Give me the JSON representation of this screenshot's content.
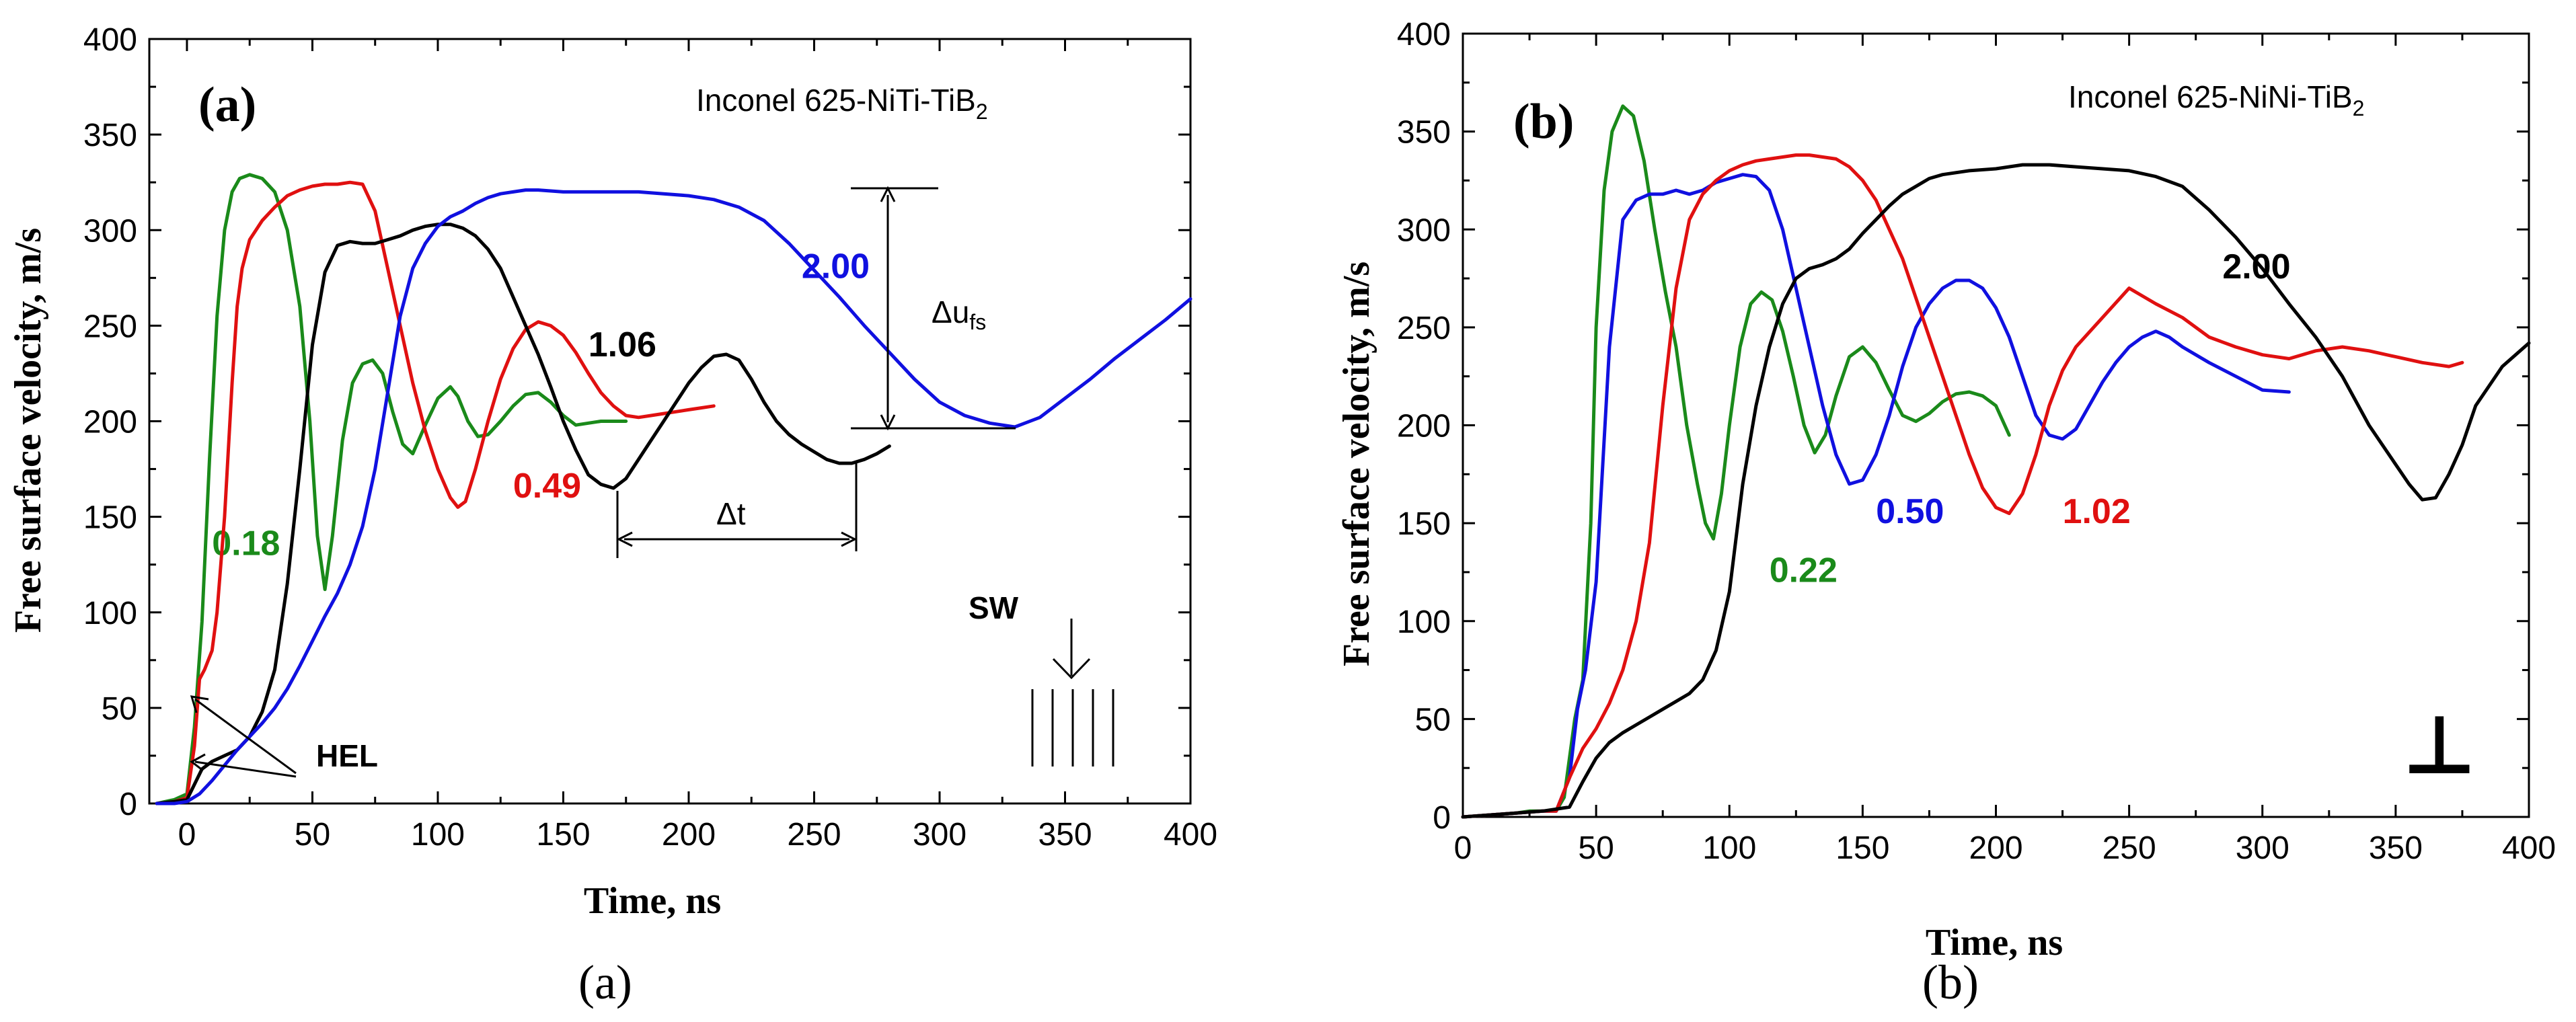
{
  "chart_data": [
    {
      "type": "line",
      "panel_tag": "(a)",
      "material_label": "Inconel 625-NiTi-TiB",
      "material_sub": "2",
      "xlabel": "Time, ns",
      "ylabel": "Free surface velocity, m/s",
      "xlim": [
        -15,
        400
      ],
      "ylim": [
        0,
        400
      ],
      "x_ticks": [
        0,
        50,
        100,
        150,
        200,
        250,
        300,
        350,
        400
      ],
      "x_tick_labels": [
        "0",
        "50",
        "100",
        "150",
        "200",
        "250",
        "300",
        "350",
        "400"
      ],
      "y_ticks": [
        0,
        50,
        100,
        150,
        200,
        250,
        300,
        350,
        400
      ],
      "y_tick_labels": [
        "0",
        "50",
        "100",
        "150",
        "200",
        "250",
        "300",
        "350",
        "400"
      ],
      "caption": "(a)",
      "series": [
        {
          "name": "0.18",
          "color": "#1a8a1a",
          "label_pos": [
            10,
            130
          ],
          "x": [
            -12,
            -5,
            0,
            3,
            6,
            9,
            12,
            15,
            18,
            21,
            25,
            30,
            35,
            40,
            45,
            49,
            52,
            55,
            58,
            62,
            66,
            70,
            74,
            78,
            82,
            86,
            90,
            95,
            100,
            105,
            108,
            112,
            116,
            120,
            125,
            130,
            135,
            140,
            145,
            150,
            155,
            160,
            165,
            170,
            175
          ],
          "values": [
            0,
            2,
            5,
            40,
            95,
            180,
            255,
            300,
            320,
            327,
            329,
            327,
            320,
            300,
            260,
            200,
            140,
            112,
            140,
            190,
            220,
            230,
            232,
            225,
            205,
            188,
            183,
            198,
            212,
            218,
            213,
            200,
            192,
            193,
            200,
            208,
            214,
            215,
            210,
            203,
            198,
            199,
            200,
            200,
            200
          ]
        },
        {
          "name": "0.49",
          "color": "#e01010",
          "label_pos": [
            130,
            160
          ],
          "x": [
            -12,
            -5,
            0,
            3,
            5,
            7,
            10,
            12,
            15,
            18,
            20,
            22,
            25,
            30,
            35,
            40,
            45,
            50,
            55,
            60,
            65,
            70,
            75,
            80,
            85,
            90,
            95,
            100,
            105,
            108,
            111,
            115,
            120,
            125,
            130,
            135,
            140,
            145,
            150,
            155,
            160,
            165,
            170,
            175,
            180,
            185,
            190,
            195,
            200,
            205,
            210
          ],
          "values": [
            0,
            1,
            3,
            30,
            65,
            70,
            80,
            100,
            150,
            220,
            260,
            280,
            295,
            305,
            312,
            318,
            321,
            323,
            324,
            324,
            325,
            324,
            310,
            280,
            250,
            220,
            195,
            175,
            160,
            155,
            158,
            175,
            200,
            222,
            238,
            248,
            252,
            250,
            245,
            236,
            225,
            215,
            208,
            203,
            202,
            203,
            204,
            205,
            206,
            207,
            208
          ]
        },
        {
          "name": "1.06",
          "color": "#000000",
          "label_pos": [
            160,
            234
          ],
          "x": [
            -12,
            -5,
            0,
            3,
            6,
            10,
            15,
            20,
            25,
            30,
            35,
            40,
            45,
            50,
            55,
            60,
            65,
            70,
            75,
            80,
            85,
            90,
            95,
            100,
            105,
            110,
            115,
            120,
            125,
            130,
            135,
            140,
            145,
            150,
            155,
            160,
            165,
            170,
            175,
            180,
            185,
            190,
            195,
            200,
            205,
            210,
            215,
            220,
            225,
            230,
            235,
            240,
            245,
            250,
            255,
            260,
            265,
            270,
            275,
            280
          ],
          "values": [
            0,
            1,
            2,
            10,
            18,
            22,
            25,
            28,
            35,
            48,
            70,
            115,
            175,
            240,
            278,
            292,
            294,
            293,
            293,
            295,
            297,
            300,
            302,
            303,
            303,
            301,
            297,
            290,
            280,
            265,
            250,
            235,
            218,
            200,
            185,
            172,
            167,
            165,
            170,
            180,
            190,
            200,
            210,
            220,
            228,
            234,
            235,
            232,
            222,
            210,
            200,
            193,
            188,
            184,
            180,
            178,
            178,
            180,
            183,
            187
          ]
        },
        {
          "name": "2.00",
          "color": "#1010e0",
          "label_pos": [
            245,
            275
          ],
          "x": [
            -12,
            -5,
            0,
            5,
            10,
            15,
            20,
            25,
            30,
            35,
            40,
            45,
            50,
            55,
            60,
            65,
            70,
            75,
            80,
            85,
            90,
            95,
            100,
            105,
            110,
            115,
            120,
            125,
            130,
            135,
            140,
            150,
            160,
            170,
            180,
            190,
            200,
            210,
            220,
            230,
            240,
            250,
            260,
            270,
            280,
            290,
            300,
            310,
            320,
            330,
            340,
            350,
            360,
            370,
            380,
            390,
            400
          ],
          "values": [
            0,
            0,
            1,
            5,
            12,
            20,
            28,
            35,
            42,
            50,
            60,
            72,
            85,
            98,
            110,
            125,
            145,
            175,
            215,
            255,
            280,
            293,
            302,
            307,
            310,
            314,
            317,
            319,
            320,
            321,
            321,
            320,
            320,
            320,
            320,
            319,
            318,
            316,
            312,
            305,
            293,
            279,
            265,
            250,
            236,
            222,
            210,
            203,
            199,
            197,
            202,
            212,
            222,
            233,
            243,
            253,
            264
          ]
        }
      ],
      "annotations": {
        "hel": "HEL",
        "sw": "SW",
        "delta_u": "Δu",
        "delta_u_sub": "fs",
        "delta_t": "Δt"
      }
    },
    {
      "type": "line",
      "panel_tag": "(b)",
      "material_label": "Inconel 625-NiNi-TiB",
      "material_sub": "2",
      "xlabel": "Time, ns",
      "ylabel": "Free surface velocity, m/s",
      "xlim": [
        0,
        400
      ],
      "ylim": [
        0,
        400
      ],
      "x_ticks": [
        0,
        50,
        100,
        150,
        200,
        250,
        300,
        350,
        400
      ],
      "x_tick_labels": [
        "0",
        "50",
        "100",
        "150",
        "200",
        "250",
        "300",
        "350",
        "400"
      ],
      "y_ticks": [
        0,
        50,
        100,
        150,
        200,
        250,
        300,
        350,
        400
      ],
      "y_tick_labels": [
        "0",
        "50",
        "100",
        "150",
        "200",
        "250",
        "300",
        "350",
        "400"
      ],
      "caption": "(b)",
      "series": [
        {
          "name": "0.22",
          "color": "#1a8a1a",
          "label_pos": [
            115,
            120
          ],
          "x": [
            0,
            10,
            20,
            25,
            30,
            35,
            38,
            40,
            42,
            45,
            48,
            50,
            53,
            56,
            60,
            64,
            68,
            72,
            76,
            80,
            84,
            88,
            91,
            94,
            97,
            100,
            104,
            108,
            112,
            116,
            120,
            124,
            128,
            132,
            136,
            140,
            145,
            150,
            155,
            160,
            165,
            170,
            175,
            180,
            185,
            190,
            195,
            200,
            205
          ],
          "values": [
            0,
            1,
            2,
            3,
            3,
            3,
            10,
            30,
            50,
            70,
            150,
            250,
            320,
            350,
            363,
            358,
            335,
            300,
            268,
            240,
            200,
            170,
            150,
            142,
            165,
            200,
            240,
            262,
            268,
            264,
            248,
            225,
            200,
            186,
            195,
            215,
            235,
            240,
            232,
            218,
            205,
            202,
            206,
            212,
            216,
            217,
            215,
            210,
            195
          ]
        },
        {
          "name": "0.50",
          "color": "#1010e0",
          "label_pos": [
            155,
            150
          ],
          "x": [
            0,
            10,
            20,
            30,
            35,
            40,
            43,
            46,
            50,
            55,
            60,
            65,
            70,
            75,
            80,
            85,
            90,
            95,
            100,
            105,
            110,
            115,
            120,
            125,
            130,
            135,
            140,
            145,
            150,
            155,
            160,
            165,
            170,
            175,
            180,
            185,
            190,
            195,
            200,
            205,
            210,
            215,
            220,
            225,
            230,
            235,
            240,
            245,
            250,
            255,
            260,
            265,
            270,
            280,
            290,
            300,
            310
          ],
          "values": [
            0,
            1,
            2,
            3,
            3,
            20,
            55,
            75,
            120,
            240,
            305,
            315,
            318,
            318,
            320,
            318,
            320,
            324,
            326,
            328,
            327,
            320,
            300,
            270,
            240,
            210,
            185,
            170,
            172,
            185,
            205,
            230,
            250,
            262,
            270,
            274,
            274,
            270,
            260,
            245,
            225,
            205,
            195,
            193,
            198,
            210,
            222,
            232,
            240,
            245,
            248,
            245,
            240,
            232,
            225,
            218,
            217
          ]
        },
        {
          "name": "1.02",
          "color": "#e01010",
          "label_pos": [
            225,
            150
          ],
          "x": [
            0,
            10,
            20,
            30,
            35,
            40,
            45,
            50,
            55,
            60,
            65,
            70,
            75,
            80,
            85,
            90,
            95,
            100,
            105,
            110,
            115,
            120,
            125,
            130,
            135,
            140,
            145,
            150,
            155,
            160,
            165,
            170,
            175,
            180,
            185,
            190,
            195,
            200,
            205,
            210,
            215,
            220,
            225,
            230,
            240,
            250,
            260,
            270,
            280,
            290,
            300,
            310,
            320,
            330,
            340,
            350,
            360,
            370,
            375
          ],
          "values": [
            0,
            1,
            2,
            3,
            3,
            20,
            35,
            45,
            58,
            75,
            100,
            140,
            210,
            270,
            305,
            318,
            325,
            330,
            333,
            335,
            336,
            337,
            338,
            338,
            337,
            336,
            332,
            325,
            315,
            300,
            285,
            265,
            245,
            225,
            205,
            185,
            168,
            158,
            155,
            165,
            185,
            210,
            228,
            240,
            255,
            270,
            262,
            255,
            245,
            240,
            236,
            234,
            238,
            240,
            238,
            235,
            232,
            230,
            232
          ]
        },
        {
          "name": "2.00",
          "color": "#000000",
          "label_pos": [
            285,
            275
          ],
          "x": [
            0,
            10,
            20,
            30,
            40,
            45,
            50,
            55,
            60,
            65,
            70,
            75,
            80,
            85,
            90,
            95,
            100,
            105,
            110,
            115,
            120,
            125,
            130,
            135,
            140,
            145,
            150,
            155,
            160,
            165,
            170,
            175,
            180,
            190,
            200,
            210,
            220,
            230,
            240,
            250,
            260,
            270,
            280,
            290,
            300,
            310,
            320,
            330,
            340,
            350,
            355,
            360,
            365,
            370,
            375,
            380,
            390,
            400
          ],
          "values": [
            0,
            1,
            2,
            3,
            5,
            18,
            30,
            38,
            43,
            47,
            51,
            55,
            59,
            63,
            70,
            85,
            115,
            170,
            210,
            240,
            262,
            275,
            280,
            282,
            285,
            290,
            298,
            305,
            312,
            318,
            322,
            326,
            328,
            330,
            331,
            333,
            333,
            332,
            331,
            330,
            327,
            322,
            310,
            296,
            280,
            262,
            245,
            225,
            200,
            180,
            170,
            162,
            163,
            175,
            190,
            210,
            230,
            242
          ]
        }
      ],
      "annotations": {
        "dislocation_symbol": "⊥"
      }
    }
  ]
}
